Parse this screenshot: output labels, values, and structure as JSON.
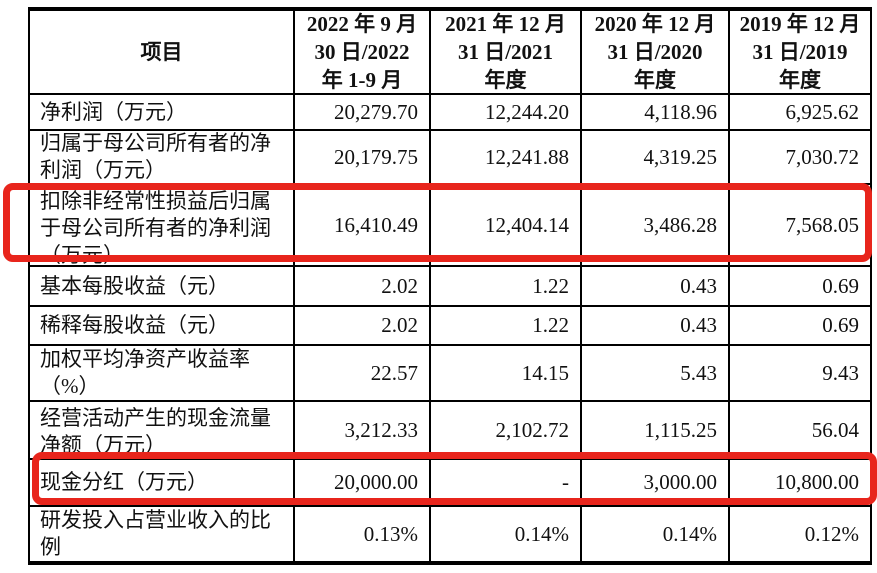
{
  "colors": {
    "background": "#ffffff",
    "table_border": "#000000",
    "text": "#111111",
    "highlight_box": "#e8251c"
  },
  "table": {
    "header": {
      "item_column": "项目",
      "period_columns": [
        "2022 年 9 月\n30 日/2022\n年 1-9 月",
        "2021 年 12 月\n31 日/2021\n年度",
        "2020 年 12 月\n31 日/2020\n年度",
        "2019 年 12 月\n31 日/2019\n年度"
      ]
    },
    "rows": [
      {
        "label": "净利润（万元）",
        "values": [
          "20,279.70",
          "12,244.20",
          "4,118.96",
          "6,925.62"
        ],
        "highlighted": false
      },
      {
        "label": "归属于母公司所有者的净\n利润（万元）",
        "values": [
          "20,179.75",
          "12,241.88",
          "4,319.25",
          "7,030.72"
        ],
        "highlighted": false
      },
      {
        "label": "扣除非经常性损益后归属\n于母公司所有者的净利润\n（万元）",
        "values": [
          "16,410.49",
          "12,404.14",
          "3,486.28",
          "7,568.05"
        ],
        "highlighted": true
      },
      {
        "label": "基本每股收益（元）",
        "values": [
          "2.02",
          "1.22",
          "0.43",
          "0.69"
        ],
        "highlighted": false
      },
      {
        "label": "稀释每股收益（元）",
        "values": [
          "2.02",
          "1.22",
          "0.43",
          "0.69"
        ],
        "highlighted": false
      },
      {
        "label": "加权平均净资产收益率\n（%）",
        "values": [
          "22.57",
          "14.15",
          "5.43",
          "9.43"
        ],
        "highlighted": false
      },
      {
        "label": "经营活动产生的现金流量\n净额（万元）",
        "values": [
          "3,212.33",
          "2,102.72",
          "1,115.25",
          "56.04"
        ],
        "highlighted": false
      },
      {
        "label": "现金分红（万元）",
        "values": [
          "20,000.00",
          "-",
          "3,000.00",
          "10,800.00"
        ],
        "highlighted": true
      },
      {
        "label": "研发投入占营业收入的比\n例",
        "values": [
          "0.13%",
          "0.14%",
          "0.14%",
          "0.12%"
        ],
        "highlighted": false
      }
    ]
  }
}
